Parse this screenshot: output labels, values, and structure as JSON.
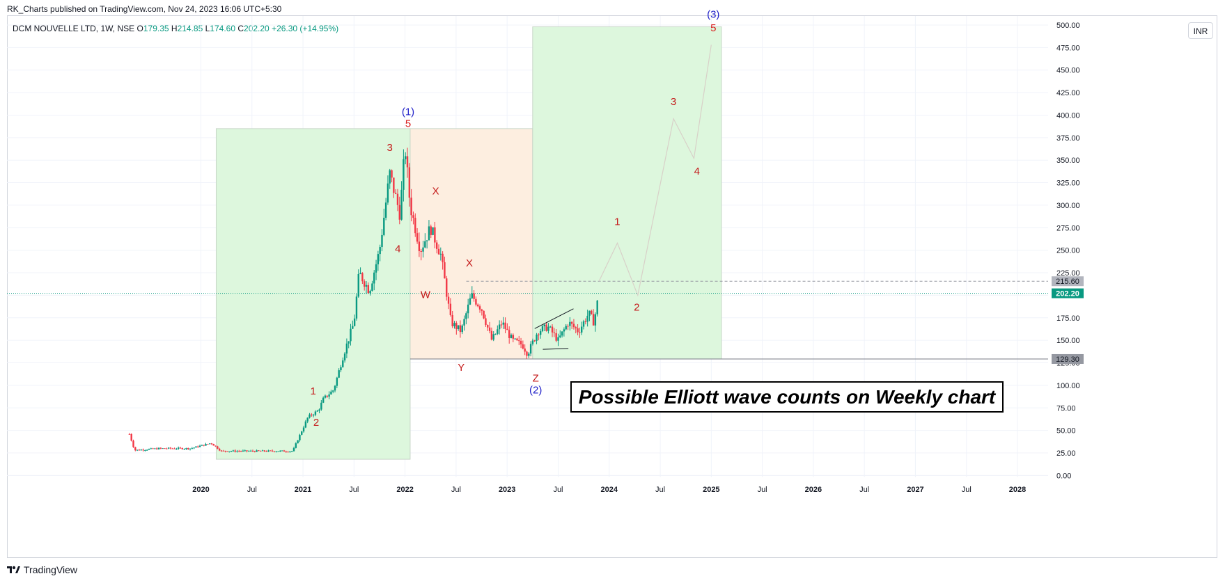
{
  "header": {
    "published_by": "RK_Charts published on TradingView.com, Nov 24, 2023 16:06 UTC+5:30",
    "symbol": "DCM NOUVELLE LTD, 1W, NSE",
    "o_label": "O",
    "o_value": "179.35",
    "h_label": "H",
    "h_value": "214.85",
    "l_label": "L",
    "l_value": "174.60",
    "c_label": "C",
    "c_value": "202.20",
    "change": "+26.30 (+14.95%)",
    "currency": "INR"
  },
  "footer": {
    "brand": "TradingView",
    "logo_icon": "tradingview-logo-icon"
  },
  "chart_data": {
    "type": "candlestick",
    "title": "",
    "y_ticks": [
      0,
      25,
      50,
      75,
      100,
      125,
      150,
      175,
      200,
      225,
      250,
      275,
      300,
      325,
      350,
      375,
      400,
      425,
      450,
      475,
      500
    ],
    "ylim": [
      -2,
      510
    ],
    "x_ticks": [
      {
        "label": "2020",
        "t": 2020.0
      },
      {
        "label": "Jul",
        "t": 2020.5
      },
      {
        "label": "2021",
        "t": 2021.0
      },
      {
        "label": "Jul",
        "t": 2021.5
      },
      {
        "label": "2022",
        "t": 2022.0
      },
      {
        "label": "Jul",
        "t": 2022.5
      },
      {
        "label": "2023",
        "t": 2023.0
      },
      {
        "label": "Jul",
        "t": 2023.5
      },
      {
        "label": "2024",
        "t": 2024.0
      },
      {
        "label": "Jul",
        "t": 2024.5
      },
      {
        "label": "2025",
        "t": 2025.0
      },
      {
        "label": "Jul",
        "t": 2025.5
      },
      {
        "label": "2026",
        "t": 2026.0
      },
      {
        "label": "Jul",
        "t": 2026.5
      },
      {
        "label": "2027",
        "t": 2027.0
      },
      {
        "label": "Jul",
        "t": 2027.5
      },
      {
        "label": "2028",
        "t": 2028.0
      }
    ],
    "xlim": [
      2018.1,
      2028.3
    ],
    "price_anchors": [
      [
        2019.3,
        46
      ],
      [
        2019.35,
        28
      ],
      [
        2019.6,
        30
      ],
      [
        2019.9,
        30
      ],
      [
        2020.1,
        36
      ],
      [
        2020.2,
        27
      ],
      [
        2020.5,
        27
      ],
      [
        2020.9,
        27
      ],
      [
        2020.95,
        40
      ],
      [
        2021.05,
        65
      ],
      [
        2021.15,
        72
      ],
      [
        2021.2,
        85
      ],
      [
        2021.3,
        95
      ],
      [
        2021.4,
        135
      ],
      [
        2021.5,
        170
      ],
      [
        2021.55,
        225
      ],
      [
        2021.65,
        205
      ],
      [
        2021.75,
        250
      ],
      [
        2021.85,
        335
      ],
      [
        2021.95,
        290
      ],
      [
        2022.0,
        365
      ],
      [
        2022.05,
        300
      ],
      [
        2022.15,
        250
      ],
      [
        2022.25,
        275
      ],
      [
        2022.35,
        245
      ],
      [
        2022.45,
        170
      ],
      [
        2022.55,
        160
      ],
      [
        2022.65,
        200
      ],
      [
        2022.75,
        185
      ],
      [
        2022.85,
        150
      ],
      [
        2022.95,
        170
      ],
      [
        2023.05,
        150
      ],
      [
        2023.15,
        145
      ],
      [
        2023.2,
        135
      ],
      [
        2023.3,
        160
      ],
      [
        2023.4,
        165
      ],
      [
        2023.5,
        150
      ],
      [
        2023.6,
        170
      ],
      [
        2023.7,
        160
      ],
      [
        2023.8,
        180
      ],
      [
        2023.85,
        170
      ],
      [
        2023.9,
        202
      ]
    ],
    "price_lines": [
      {
        "label": "215.60",
        "value": 215.6,
        "style": "dashed"
      },
      {
        "label": "202.20",
        "value": 202.2,
        "style": "dotted-green"
      },
      {
        "label": "129.30",
        "value": 129.3,
        "style": "solid"
      }
    ],
    "zones": [
      {
        "t1": 2020.15,
        "t2": 2022.05,
        "y1": 18,
        "y2": 385,
        "color": "#ddf7dd"
      },
      {
        "t1": 2022.05,
        "t2": 2023.25,
        "y1": 129.3,
        "y2": 385,
        "color": "#fdeee0"
      },
      {
        "t1": 2023.25,
        "t2": 2025.1,
        "y1": 129.3,
        "y2": 498,
        "color": "#ddf7dd"
      }
    ],
    "projection": [
      [
        2023.9,
        215.6
      ],
      [
        2024.08,
        258
      ],
      [
        2024.28,
        200
      ],
      [
        2024.63,
        396
      ],
      [
        2024.83,
        352
      ],
      [
        2025.0,
        478
      ]
    ],
    "wedge": [
      [
        [
          2023.27,
          163
        ],
        [
          2023.65,
          185
        ]
      ],
      [
        [
          2023.35,
          140
        ],
        [
          2023.6,
          141
        ]
      ]
    ],
    "wave_labels": [
      {
        "text": "(1)",
        "t": 2022.03,
        "v": 400,
        "color": "#1e1ec8"
      },
      {
        "text": "5",
        "t": 2022.03,
        "v": 387,
        "color": "#d91e1e"
      },
      {
        "text": "3",
        "t": 2021.85,
        "v": 360,
        "color": "#c41a1a"
      },
      {
        "text": "4",
        "t": 2021.93,
        "v": 248,
        "color": "#c41a1a"
      },
      {
        "text": "1",
        "t": 2021.1,
        "v": 90,
        "color": "#c41a1a"
      },
      {
        "text": "2",
        "t": 2021.13,
        "v": 55,
        "color": "#c41a1a"
      },
      {
        "text": "X",
        "t": 2022.3,
        "v": 312,
        "color": "#c41a1a"
      },
      {
        "text": "X",
        "t": 2022.63,
        "v": 232,
        "color": "#c41a1a"
      },
      {
        "text": "W",
        "t": 2022.2,
        "v": 197,
        "color": "#c41a1a"
      },
      {
        "text": "Y",
        "t": 2022.55,
        "v": 116,
        "color": "#c41a1a"
      },
      {
        "text": "Z",
        "t": 2023.28,
        "v": 104,
        "color": "#c41a1a"
      },
      {
        "text": "(2)",
        "t": 2023.28,
        "v": 91,
        "color": "#1e1ec8"
      },
      {
        "text": "1",
        "t": 2024.08,
        "v": 278,
        "color": "#c41a1a"
      },
      {
        "text": "2",
        "t": 2024.27,
        "v": 183,
        "color": "#c41a1a"
      },
      {
        "text": "3",
        "t": 2024.63,
        "v": 411,
        "color": "#c41a1a"
      },
      {
        "text": "4",
        "t": 2024.86,
        "v": 334,
        "color": "#c41a1a"
      },
      {
        "text": "(3)",
        "t": 2025.02,
        "v": 508,
        "color": "#1e1ec8"
      },
      {
        "text": "5",
        "t": 2025.02,
        "v": 493,
        "color": "#d91e1e"
      }
    ],
    "annotation": "Possible Elliott wave counts on Weekly chart",
    "colors": {
      "up": "#089981",
      "down": "#f23645",
      "grid": "#f0f3fa",
      "axis_text": "#131722"
    }
  }
}
